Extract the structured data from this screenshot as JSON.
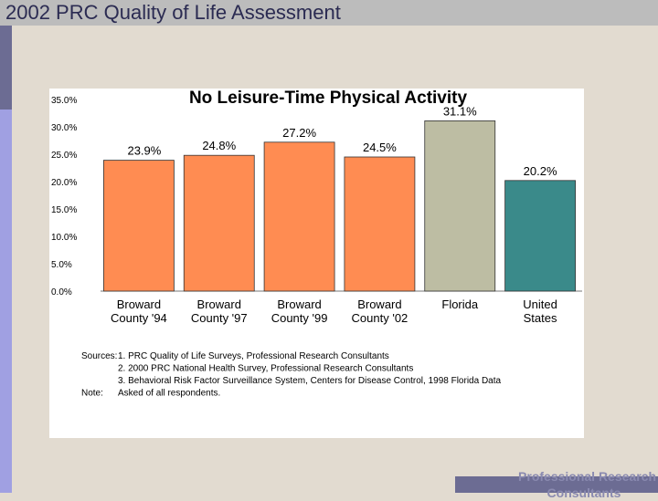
{
  "header": {
    "title": "2002 PRC Quality of Life Assessment"
  },
  "footer": {
    "line1": "Professional Research",
    "line2": "Consultants"
  },
  "colors": {
    "topbar": "#bcbcbc",
    "sidebar_dark": "#6c6c93",
    "sidebar_light": "#a0a0e2",
    "background": "#e2dbd0",
    "bar_broward": "#ff8c52",
    "bar_florida": "#bdbda3",
    "bar_us": "#3a8a8a"
  },
  "chart_data": {
    "type": "bar",
    "title": "No Leisure-Time Physical Activity",
    "categories": [
      [
        "Broward",
        "County '94"
      ],
      [
        "Broward",
        "County '97"
      ],
      [
        "Broward",
        "County '99"
      ],
      [
        "Broward",
        "County '02"
      ],
      [
        "Florida"
      ],
      [
        "United",
        "States"
      ]
    ],
    "values": [
      23.9,
      24.8,
      27.2,
      24.5,
      31.1,
      20.2
    ],
    "data_labels": [
      "23.9%",
      "24.8%",
      "27.2%",
      "24.5%",
      "31.1%",
      "20.2%"
    ],
    "bar_colors": [
      "#ff8c52",
      "#ff8c52",
      "#ff8c52",
      "#ff8c52",
      "#bdbda3",
      "#3a8a8a"
    ],
    "ylim": [
      0,
      35
    ],
    "yticks": [
      "0.0%",
      "5.0%",
      "10.0%",
      "15.0%",
      "20.0%",
      "25.0%",
      "30.0%",
      "35.0%"
    ],
    "grid": false,
    "notes": [
      [
        "Sources:",
        "1. PRC Quality of Life Surveys, Professional Research Consultants"
      ],
      [
        "",
        "2. 2000 PRC National Health Survey, Professional Research Consultants"
      ],
      [
        "",
        "3. Behavioral Risk Factor Surveillance System, Centers for Disease Control, 1998 Florida Data"
      ],
      [
        "Note:",
        "Asked of all respondents."
      ]
    ]
  }
}
